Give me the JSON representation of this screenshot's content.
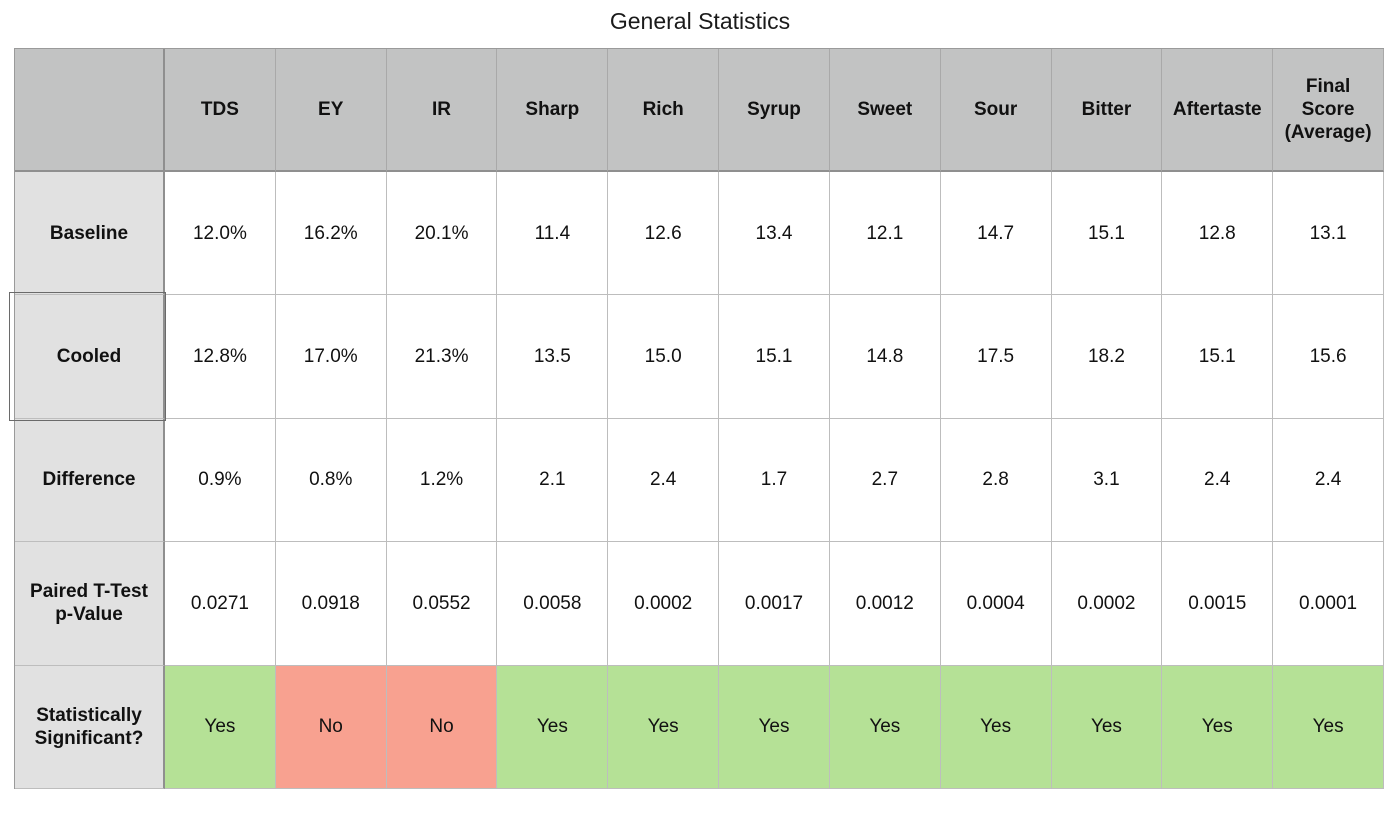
{
  "chart_data": {
    "type": "table",
    "title": "General Statistics",
    "columns": [
      "TDS",
      "EY",
      "IR",
      "Sharp",
      "Rich",
      "Syrup",
      "Sweet",
      "Sour",
      "Bitter",
      "Aftertaste",
      "Final Score (Average)"
    ],
    "column_header_lines": [
      [
        "TDS"
      ],
      [
        "EY"
      ],
      [
        "IR"
      ],
      [
        "Sharp"
      ],
      [
        "Rich"
      ],
      [
        "Syrup"
      ],
      [
        "Sweet"
      ],
      [
        "Sour"
      ],
      [
        "Bitter"
      ],
      [
        "Aftertaste"
      ],
      [
        "Final",
        "Score",
        "(Average)"
      ]
    ],
    "rows": [
      {
        "label_lines": [
          "Baseline"
        ],
        "values": [
          "12.0%",
          "16.2%",
          "20.1%",
          "11.4",
          "12.6",
          "13.4",
          "12.1",
          "14.7",
          "15.1",
          "12.8",
          "13.1"
        ]
      },
      {
        "label_lines": [
          "Cooled"
        ],
        "values": [
          "12.8%",
          "17.0%",
          "21.3%",
          "13.5",
          "15.0",
          "15.1",
          "14.8",
          "17.5",
          "18.2",
          "15.1",
          "15.6"
        ]
      },
      {
        "label_lines": [
          "Difference"
        ],
        "values": [
          "0.9%",
          "0.8%",
          "1.2%",
          "2.1",
          "2.4",
          "1.7",
          "2.7",
          "2.8",
          "3.1",
          "2.4",
          "2.4"
        ]
      },
      {
        "label_lines": [
          "Paired T-Test",
          "p-Value"
        ],
        "values": [
          "0.0271",
          "0.0918",
          "0.0552",
          "0.0058",
          "0.0002",
          "0.0017",
          "0.0012",
          "0.0004",
          "0.0002",
          "0.0015",
          "0.0001"
        ]
      },
      {
        "label_lines": [
          "Statistically",
          "Significant?"
        ],
        "values": [
          "Yes",
          "No",
          "No",
          "Yes",
          "Yes",
          "Yes",
          "Yes",
          "Yes",
          "Yes",
          "Yes",
          "Yes"
        ],
        "colored": true
      }
    ],
    "colors": {
      "header_bg": "#c2c3c3",
      "rowhead_bg": "#e1e1e1",
      "yes_bg": "#b5e196",
      "no_bg": "#f8a190"
    },
    "selected_row": "Cooled"
  }
}
